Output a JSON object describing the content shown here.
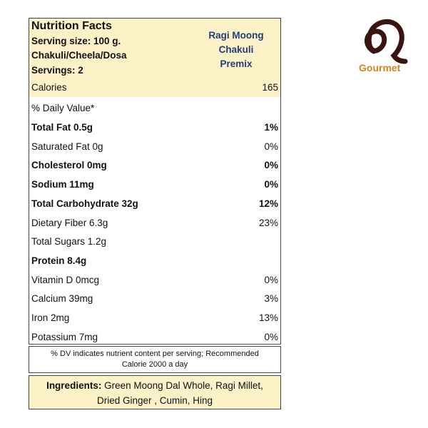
{
  "header": {
    "title": "Nutrition Facts",
    "serving_size": "Serving size: 100 g.",
    "serving_unit": "Chakuli/Cheela/Dosa",
    "servings": "Servings: 2",
    "product_lines": [
      "Ragi Moong",
      "Chakuli",
      "Premix"
    ]
  },
  "calories": {
    "label": "Calories",
    "value": "165"
  },
  "daily_value_header": "% Daily Value*",
  "nutrients": [
    {
      "name": "Total Fat 0.5g",
      "dv": "1%",
      "bold": true
    },
    {
      "name": "Saturated Fat 0g",
      "dv": "0%",
      "bold": false
    },
    {
      "name": "Cholesterol 0mg",
      "dv": "0%",
      "bold": true
    },
    {
      "name": "Sodium 11mg",
      "dv": "0%",
      "bold": true
    },
    {
      "name": "Total Carbohydrate 32g",
      "dv": "12%",
      "bold": true
    },
    {
      "name": "Dietary Fiber 6.3g",
      "dv": "23%",
      "bold": false
    },
    {
      "name": "Total Sugars 1.2g",
      "dv": "",
      "bold": false
    },
    {
      "name": "Protein 8.4g",
      "dv": "",
      "bold": true
    },
    {
      "name": "Vitamin D 0mcg",
      "dv": "0%",
      "bold": false
    },
    {
      "name": "Calcium 39mg",
      "dv": "3%",
      "bold": false
    },
    {
      "name": "Iron 2mg",
      "dv": "13%",
      "bold": false
    },
    {
      "name": "Potassium 7mg",
      "dv": "0%",
      "bold": false
    }
  ],
  "footnote": {
    "line1": "% DV indicates nutrient content per serving; Recommended",
    "line2": "Calorie 2000 a day"
  },
  "ingredients": {
    "label": "Ingredients:",
    "line1": "Green Moong Dal Whole, Ragi Millet,",
    "line2": "Dried Ginger , Cumin, Hing"
  },
  "logo": {
    "brand": "Gourmet",
    "color": "#3a1410",
    "accent": "#d0841e"
  },
  "colors": {
    "panel": "#fdf1c8",
    "product": "#1f3f7a"
  }
}
